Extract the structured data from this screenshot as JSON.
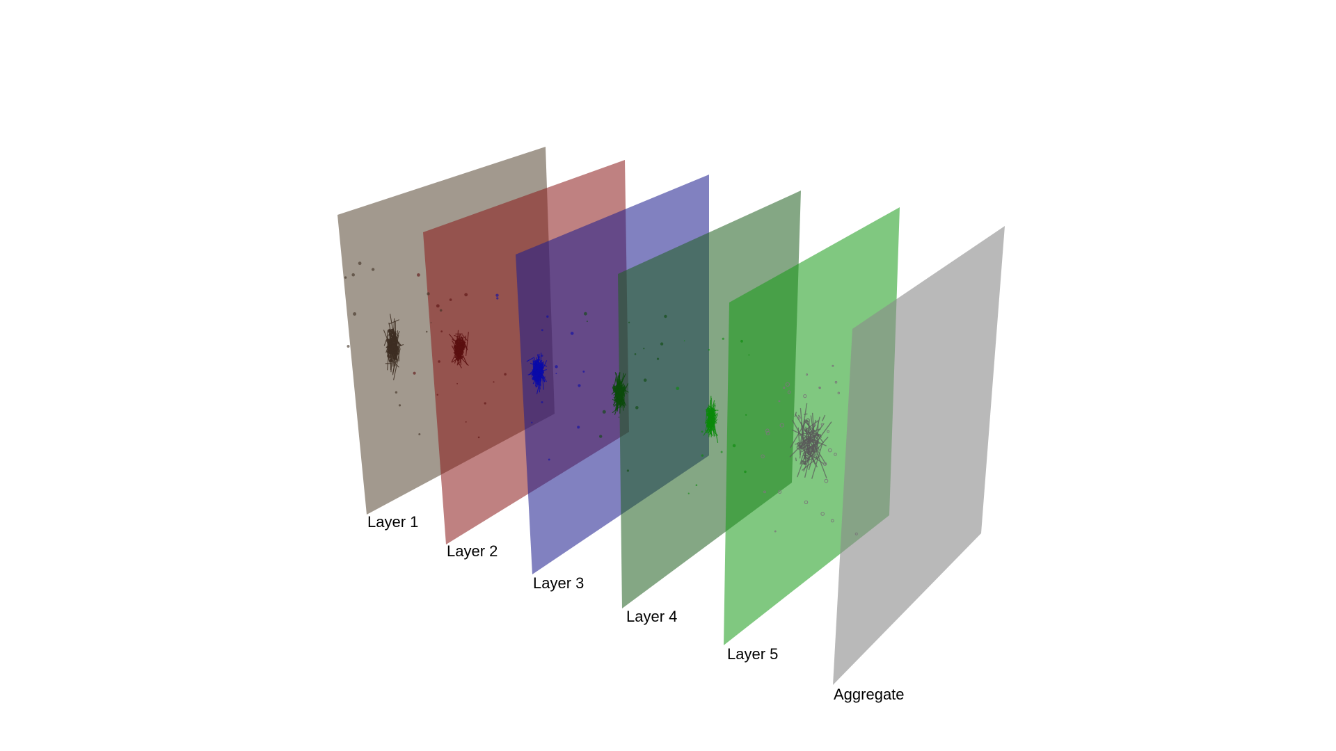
{
  "layers": [
    {
      "label": "Layer 1",
      "plane_color": "#6e5f4f",
      "plane_opacity": 0.64,
      "network_color": "#3d2e22"
    },
    {
      "label": "Layer 2",
      "plane_color": "#8b1a1a",
      "plane_opacity": 0.55,
      "network_color": "#5a0f0f"
    },
    {
      "label": "Layer 3",
      "plane_color": "#1f1f8f",
      "plane_opacity": 0.56,
      "network_color": "#0a0aa8"
    },
    {
      "label": "Layer 4",
      "plane_color": "#1f5f1f",
      "plane_opacity": 0.55,
      "network_color": "#0b4a0b"
    },
    {
      "label": "Layer 5",
      "plane_color": "#179a17",
      "plane_opacity": 0.55,
      "network_color": "#0a8a0a"
    },
    {
      "label": "Aggregate",
      "plane_color": "#8a8a8a",
      "plane_opacity": 0.6,
      "network_color": "#5a5a5a"
    }
  ]
}
